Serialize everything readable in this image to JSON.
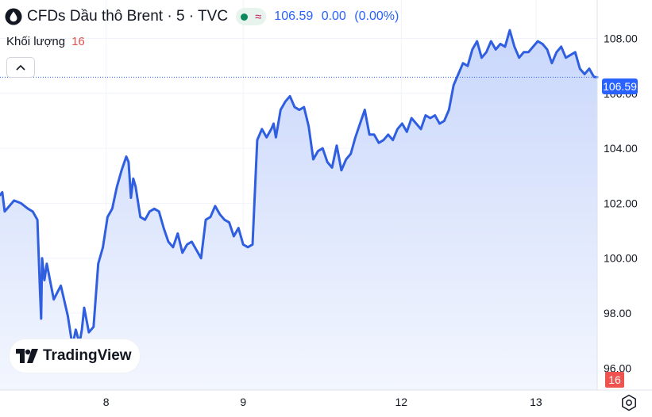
{
  "header": {
    "title": "CFDs Dầu thô Brent · 5 · TVC",
    "last": "106.59",
    "change": "0.00",
    "change_pct": "(0.00%)"
  },
  "volume_legend": {
    "label": "Khối lượng",
    "value": "16"
  },
  "logo": {
    "text": "TradingView"
  },
  "colors": {
    "line": "#2f5fe0",
    "area_top": "#c9d7fb",
    "area_bottom": "#f3f6fe",
    "price_tag": "#2962ff",
    "vol_up": "#3bb39a",
    "vol_down": "#ef6a6a"
  },
  "chart_data": {
    "type": "area",
    "ylim": [
      95.2,
      109.4
    ],
    "y_ticks": [
      "108.00",
      "106.00",
      "104.00",
      "102.00",
      "100.00",
      "98.00",
      "96.00"
    ],
    "y_tick_values": [
      108,
      106,
      104,
      102,
      100,
      98,
      96
    ],
    "x_ticks": [
      "8",
      "9",
      "12",
      "13"
    ],
    "x_tick_positions": [
      2.27,
      5.2,
      8.58,
      11.46
    ],
    "x_range": [
      0,
      12.77
    ],
    "last_price": "106.59",
    "last_volume": "16",
    "grid": true,
    "x": [
      0.0,
      0.05,
      0.1,
      0.3,
      0.45,
      0.6,
      0.7,
      0.8,
      0.85,
      0.88,
      0.9,
      0.95,
      1.0,
      1.15,
      1.3,
      1.45,
      1.55,
      1.62,
      1.7,
      1.75,
      1.8,
      1.9,
      2.0,
      2.1,
      2.2,
      2.3,
      2.4,
      2.5,
      2.6,
      2.7,
      2.75,
      2.8,
      2.85,
      2.9,
      3.0,
      3.1,
      3.2,
      3.3,
      3.4,
      3.5,
      3.6,
      3.7,
      3.8,
      3.9,
      4.0,
      4.1,
      4.2,
      4.3,
      4.4,
      4.5,
      4.6,
      4.7,
      4.8,
      4.9,
      5.0,
      5.1,
      5.2,
      5.3,
      5.4,
      5.5,
      5.6,
      5.7,
      5.8,
      5.85,
      5.9,
      5.95,
      6.0,
      6.1,
      6.2,
      6.3,
      6.4,
      6.5,
      6.6,
      6.7,
      6.8,
      6.9,
      7.0,
      7.1,
      7.2,
      7.3,
      7.4,
      7.5,
      7.6,
      7.7,
      7.8,
      7.9,
      8.0,
      8.1,
      8.2,
      8.3,
      8.4,
      8.5,
      8.6,
      8.7,
      8.8,
      8.9,
      9.0,
      9.1,
      9.2,
      9.3,
      9.4,
      9.5,
      9.6,
      9.7,
      9.8,
      9.9,
      10.0,
      10.1,
      10.2,
      10.3,
      10.4,
      10.5,
      10.6,
      10.7,
      10.8,
      10.9,
      11.0,
      11.1,
      11.2,
      11.3,
      11.4,
      11.5,
      11.6,
      11.7,
      11.8,
      11.9,
      12.0,
      12.1,
      12.2,
      12.3,
      12.4,
      12.5,
      12.6,
      12.7,
      12.77
    ],
    "price": [
      102.3,
      102.4,
      101.7,
      102.1,
      102.0,
      101.8,
      101.7,
      101.4,
      99.0,
      97.8,
      100.0,
      99.2,
      99.8,
      98.5,
      99.0,
      97.9,
      96.8,
      97.4,
      96.9,
      97.4,
      98.2,
      97.3,
      97.5,
      99.8,
      100.4,
      101.5,
      101.8,
      102.6,
      103.2,
      103.7,
      103.5,
      102.2,
      102.9,
      102.6,
      101.5,
      101.4,
      101.7,
      101.8,
      101.7,
      101.1,
      100.6,
      100.4,
      100.9,
      100.2,
      100.5,
      100.6,
      100.3,
      100.0,
      101.4,
      101.5,
      101.9,
      101.6,
      101.4,
      101.3,
      100.8,
      101.1,
      100.5,
      100.4,
      100.5,
      104.3,
      104.7,
      104.4,
      104.7,
      104.9,
      104.4,
      104.9,
      105.4,
      105.7,
      105.9,
      105.5,
      105.4,
      105.5,
      104.8,
      103.6,
      103.9,
      104.0,
      103.5,
      103.3,
      104.1,
      103.2,
      103.6,
      103.8,
      104.4,
      104.9,
      105.4,
      104.5,
      104.5,
      104.2,
      104.3,
      104.5,
      104.3,
      104.7,
      104.9,
      104.6,
      105.1,
      104.9,
      104.7,
      105.2,
      105.1,
      105.2,
      104.9,
      105.0,
      105.4,
      106.3,
      106.7,
      107.1,
      107.0,
      107.6,
      107.9,
      107.3,
      107.5,
      107.9,
      107.6,
      107.8,
      107.7,
      108.3,
      107.7,
      107.3,
      107.5,
      107.5,
      107.7,
      107.9,
      107.8,
      107.6,
      107.1,
      107.5,
      107.7,
      107.3,
      107.4,
      107.5,
      106.9,
      106.7,
      106.9,
      106.6,
      106.59
    ]
  }
}
